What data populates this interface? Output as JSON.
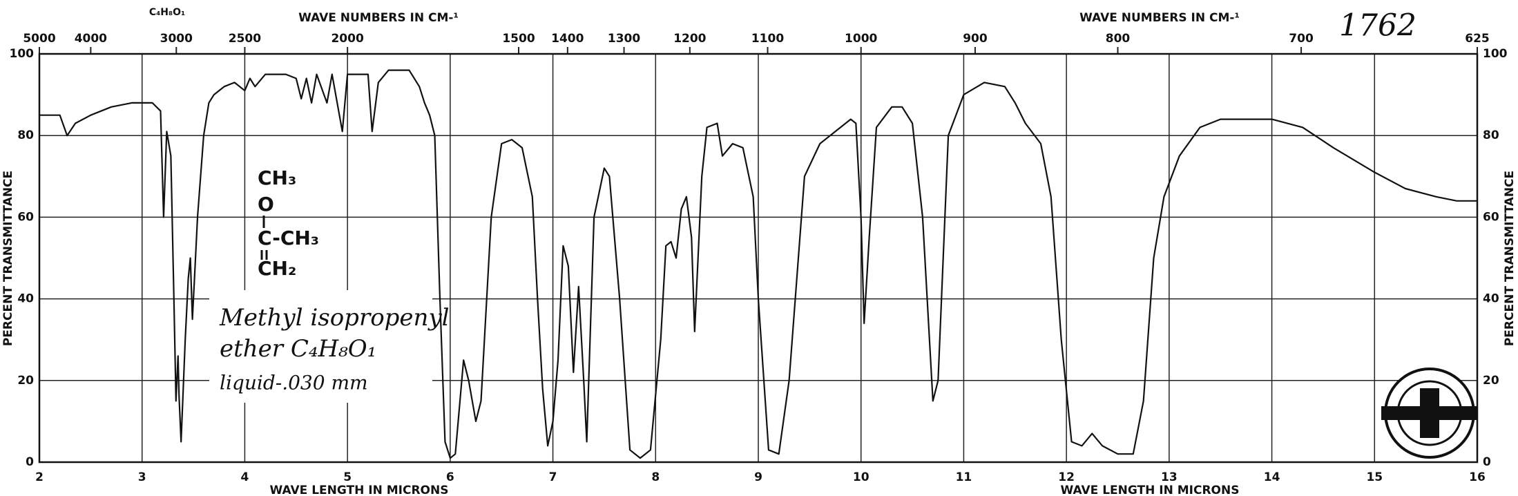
{
  "chart_data": {
    "type": "line",
    "spectrum_id": "1762",
    "formula": "C₄H₈O₁",
    "x_label": "WAVE LENGTH IN MICRONS",
    "y_label": "PERCENT TRANSMITTANCE",
    "x2_label": "WAVE NUMBERS IN CM-¹",
    "annotation": {
      "lines": [
        "Methyl isopropenyl",
        "ether C₄H₈O₁",
        "liquid-.030 mm"
      ]
    },
    "structure": [
      "CH₃",
      "O",
      "C-CH₃",
      "CH₂"
    ],
    "color": "#111111",
    "x": [
      2.0,
      2.2,
      2.27,
      2.35,
      2.5,
      2.7,
      2.9,
      3.1,
      3.18,
      3.21,
      3.24,
      3.28,
      3.31,
      3.33,
      3.35,
      3.36,
      3.38,
      3.42,
      3.45,
      3.47,
      3.49,
      3.51,
      3.54,
      3.6,
      3.65,
      3.7,
      3.8,
      3.9,
      4.0,
      4.05,
      4.1,
      4.2,
      4.4,
      4.5,
      4.55,
      4.6,
      4.65,
      4.7,
      4.8,
      4.85,
      4.95,
      5.0,
      5.1,
      5.2,
      5.24,
      5.3,
      5.4,
      5.6,
      5.7,
      5.75,
      5.8,
      5.85,
      5.9,
      5.95,
      6.0,
      6.05,
      6.13,
      6.18,
      6.25,
      6.3,
      6.4,
      6.5,
      6.6,
      6.7,
      6.8,
      6.85,
      6.9,
      6.95,
      7.0,
      7.05,
      7.1,
      7.15,
      7.2,
      7.25,
      7.3,
      7.33,
      7.4,
      7.5,
      7.55,
      7.65,
      7.75,
      7.85,
      7.95,
      8.05,
      8.1,
      8.15,
      8.2,
      8.25,
      8.3,
      8.35,
      8.38,
      8.45,
      8.5,
      8.6,
      8.65,
      8.75,
      8.85,
      8.95,
      9.0,
      9.1,
      9.2,
      9.3,
      9.45,
      9.6,
      9.8,
      9.9,
      9.95,
      10.0,
      10.03,
      10.08,
      10.15,
      10.3,
      10.4,
      10.5,
      10.6,
      10.7,
      10.75,
      10.85,
      11.0,
      11.2,
      11.4,
      11.5,
      11.6,
      11.75,
      11.85,
      11.95,
      12.05,
      12.15,
      12.25,
      12.35,
      12.5,
      12.65,
      12.75,
      12.85,
      12.95,
      13.1,
      13.3,
      13.5,
      14.0,
      14.3,
      14.6,
      15.0,
      15.3,
      15.6,
      15.8,
      16.0
    ],
    "values": [
      85,
      85,
      80,
      83,
      85,
      87,
      88,
      88,
      86,
      60,
      81,
      75,
      40,
      15,
      26,
      16,
      5,
      30,
      45,
      50,
      35,
      45,
      60,
      80,
      88,
      90,
      92,
      93,
      91,
      94,
      92,
      95,
      95,
      94,
      89,
      94,
      88,
      95,
      88,
      95,
      81,
      95,
      95,
      95,
      81,
      93,
      96,
      96,
      92,
      88,
      85,
      80,
      40,
      5,
      1,
      2,
      25,
      20,
      10,
      15,
      60,
      78,
      79,
      77,
      65,
      40,
      18,
      4,
      10,
      25,
      53,
      48,
      22,
      43,
      20,
      5,
      60,
      72,
      70,
      40,
      3,
      1,
      3,
      30,
      53,
      54,
      50,
      62,
      65,
      55,
      32,
      70,
      82,
      83,
      75,
      78,
      77,
      65,
      40,
      3,
      2,
      20,
      70,
      78,
      82,
      84,
      83,
      60,
      34,
      55,
      82,
      87,
      87,
      83,
      60,
      15,
      20,
      80,
      90,
      93,
      92,
      88,
      83,
      78,
      65,
      30,
      5,
      4,
      7,
      4,
      2,
      2,
      15,
      50,
      65,
      75,
      82,
      84,
      84,
      82,
      77,
      71,
      67,
      65,
      64,
      64
    ],
    "xlim": [
      2,
      16
    ],
    "xticks": [
      2,
      3,
      4,
      5,
      6,
      7,
      8,
      9,
      10,
      11,
      12,
      13,
      14,
      15,
      16
    ],
    "ylim": [
      0,
      100
    ],
    "yticks": [
      0,
      20,
      40,
      60,
      80,
      100
    ],
    "x2lim": [
      5000,
      625
    ],
    "x2scale": "reciprocal",
    "x2ticks": [
      5000,
      4000,
      3000,
      2500,
      2000,
      1500,
      1400,
      1300,
      1200,
      1100,
      1000,
      900,
      800,
      700,
      625
    ],
    "grid": true
  }
}
